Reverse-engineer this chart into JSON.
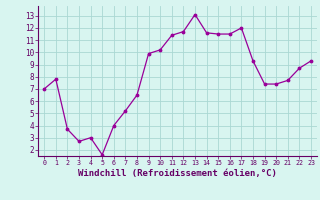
{
  "x": [
    0,
    1,
    2,
    3,
    4,
    5,
    6,
    7,
    8,
    9,
    10,
    11,
    12,
    13,
    14,
    15,
    16,
    17,
    18,
    19,
    20,
    21,
    22,
    23
  ],
  "y": [
    7.0,
    7.8,
    3.7,
    2.7,
    3.0,
    1.6,
    4.0,
    5.2,
    6.5,
    9.9,
    10.2,
    11.4,
    11.7,
    13.1,
    11.6,
    11.5,
    11.5,
    12.0,
    9.3,
    7.4,
    7.4,
    7.7,
    8.7,
    9.3
  ],
  "line_color": "#990099",
  "marker": ".",
  "marker_size": 3.5,
  "bg_color": "#d8f5f0",
  "grid_color": "#aad8d3",
  "xlabel": "Windchill (Refroidissement éolien,°C)",
  "xlabel_fontsize": 6.5,
  "ytick_labels": [
    "2",
    "3",
    "4",
    "5",
    "6",
    "7",
    "8",
    "9",
    "10",
    "11",
    "12",
    "13"
  ],
  "xtick_labels": [
    "0",
    "1",
    "2",
    "3",
    "4",
    "5",
    "6",
    "7",
    "8",
    "9",
    "10",
    "11",
    "12",
    "13",
    "14",
    "15",
    "16",
    "17",
    "18",
    "19",
    "20",
    "21",
    "22",
    "23"
  ],
  "ylim": [
    1.5,
    13.8
  ],
  "xlim": [
    -0.5,
    23.5
  ],
  "yticks": [
    2,
    3,
    4,
    5,
    6,
    7,
    8,
    9,
    10,
    11,
    12,
    13
  ],
  "tick_color": "#660066",
  "label_color": "#660066"
}
